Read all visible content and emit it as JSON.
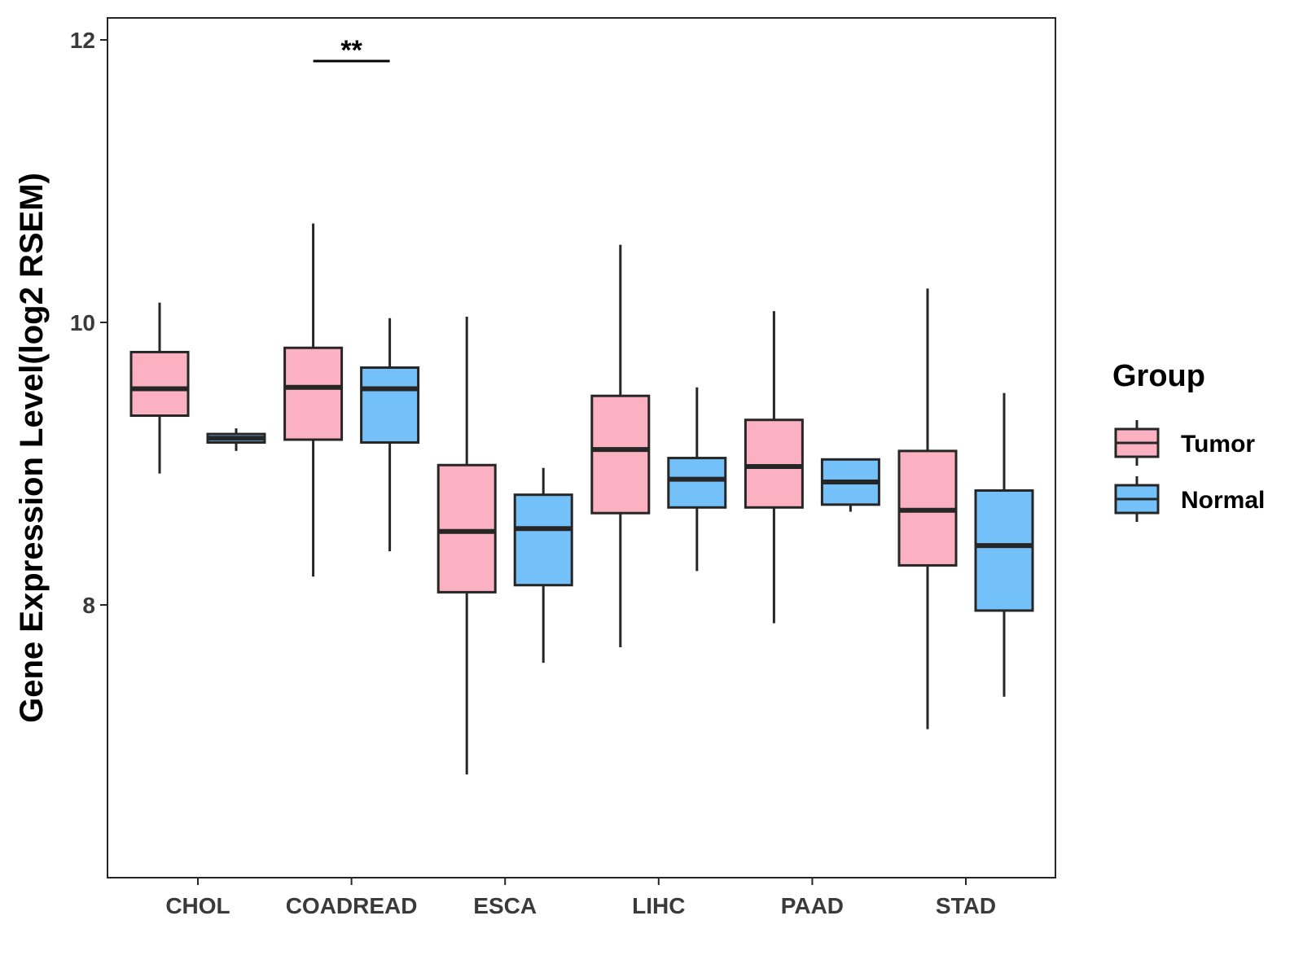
{
  "chart_data": {
    "type": "boxplot",
    "title": "",
    "xlabel": "",
    "ylabel": "Gene Expression Level(log2 RSEM)",
    "ylim": [
      6.1,
      12.2
    ],
    "yticks": [
      8,
      10,
      12
    ],
    "categories": [
      "CHOL",
      "COADREAD",
      "ESCA",
      "LIHC",
      "PAAD",
      "STAD"
    ],
    "legend": {
      "title": "Group",
      "position": "right"
    },
    "colors": {
      "Tumor": "#fbb1c1",
      "Normal": "#74c0f8",
      "stroke": "#262626"
    },
    "series": [
      {
        "name": "Tumor",
        "boxes": [
          {
            "category": "CHOL",
            "min": 8.93,
            "q1": 9.34,
            "median": 9.53,
            "q3": 9.79,
            "max": 10.14
          },
          {
            "category": "COADREAD",
            "min": 8.2,
            "q1": 9.17,
            "median": 9.54,
            "q3": 9.82,
            "max": 10.7
          },
          {
            "category": "ESCA",
            "min": 6.8,
            "q1": 8.09,
            "median": 8.52,
            "q3": 8.99,
            "max": 10.04
          },
          {
            "category": "LIHC",
            "min": 7.7,
            "q1": 8.65,
            "median": 9.1,
            "q3": 9.48,
            "max": 10.55
          },
          {
            "category": "PAAD",
            "min": 7.87,
            "q1": 8.69,
            "median": 8.98,
            "q3": 9.31,
            "max": 10.08
          },
          {
            "category": "STAD",
            "min": 7.12,
            "q1": 8.28,
            "median": 8.67,
            "q3": 9.09,
            "max": 10.24
          }
        ]
      },
      {
        "name": "Normal",
        "boxes": [
          {
            "category": "CHOL",
            "min": 9.09,
            "q1": 9.15,
            "median": 9.18,
            "q3": 9.21,
            "max": 9.25
          },
          {
            "category": "COADREAD",
            "min": 8.38,
            "q1": 9.15,
            "median": 9.53,
            "q3": 9.68,
            "max": 10.03
          },
          {
            "category": "ESCA",
            "min": 7.59,
            "q1": 8.14,
            "median": 8.54,
            "q3": 8.78,
            "max": 8.97
          },
          {
            "category": "LIHC",
            "min": 8.24,
            "q1": 8.69,
            "median": 8.89,
            "q3": 9.04,
            "max": 9.54
          },
          {
            "category": "PAAD",
            "min": 8.66,
            "q1": 8.71,
            "median": 8.87,
            "q3": 9.03,
            "max": 9.03
          },
          {
            "category": "STAD",
            "min": 7.35,
            "q1": 7.96,
            "median": 8.42,
            "q3": 8.81,
            "max": 9.5
          }
        ]
      }
    ],
    "annotations": [
      {
        "category": "COADREAD",
        "text": "**"
      }
    ]
  }
}
